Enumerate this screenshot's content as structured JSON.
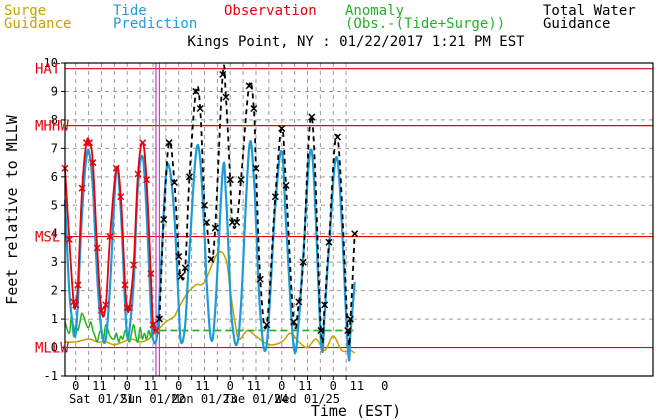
{
  "header": {
    "legend": [
      {
        "line1": "Surge",
        "line2": "Guidance",
        "color": "#c8a000"
      },
      {
        "line1": "Tide",
        "line2": "Prediction",
        "color": "#1e9bd7"
      },
      {
        "line1": "Observation",
        "line2": "",
        "color": "#e8000b"
      },
      {
        "line1": "Anomaly",
        "line2": "(Obs.-(Tide+Surge))",
        "color": "#22b422"
      },
      {
        "line1": "Total Water",
        "line2": "Guidance",
        "color": "#000000"
      }
    ],
    "title": "Kings Point, NY : 01/22/2017 1:21 PM EST"
  },
  "chart_data": {
    "type": "line",
    "xlabel": "Time (EST)",
    "ylabel": "Feet relative to MLLW",
    "xlim": [
      -5,
      269
    ],
    "ylim": [
      -1,
      10
    ],
    "yticks": [
      -1,
      0,
      1,
      2,
      3,
      4,
      5,
      6,
      7,
      8,
      9,
      10
    ],
    "xticks": [
      {
        "h": 0,
        "label": "0"
      },
      {
        "h": 11,
        "label": "11"
      },
      {
        "h": 24,
        "label": "0"
      },
      {
        "h": 35,
        "label": "11"
      },
      {
        "h": 48,
        "label": "0"
      },
      {
        "h": 59,
        "label": "11"
      },
      {
        "h": 72,
        "label": "0"
      },
      {
        "h": 83,
        "label": "11"
      },
      {
        "h": 96,
        "label": "0"
      },
      {
        "h": 107,
        "label": "11"
      },
      {
        "h": 120,
        "label": "0"
      },
      {
        "h": 131,
        "label": "11"
      },
      {
        "h": 144,
        "label": "0"
      }
    ],
    "day_labels": [
      {
        "h": 12,
        "label": "Sat 01/21"
      },
      {
        "h": 36,
        "label": "Sun 01/22"
      },
      {
        "h": 60,
        "label": "Mon 01/23"
      },
      {
        "h": 84,
        "label": "Tue 01/24"
      },
      {
        "h": 108,
        "label": "Wed 01/25"
      }
    ],
    "ref_lines": [
      {
        "name": "HAT",
        "y": 9.8
      },
      {
        "name": "MHHW",
        "y": 7.8
      },
      {
        "name": "MSL",
        "y": 3.9
      },
      {
        "name": "MLLW",
        "y": 0
      }
    ],
    "now_line_h": 37.4,
    "forecast_start_h": 39,
    "series": [
      {
        "name": "Tide Prediction",
        "color": "#1e9bd7",
        "x": [
          -5,
          -3,
          -1,
          0,
          1,
          3,
          5,
          6.4,
          8,
          10,
          12,
          14,
          16,
          18.9,
          21,
          23,
          24,
          25,
          27,
          29,
          31.2,
          33,
          35,
          36,
          38,
          40,
          42,
          43.7,
          46,
          48,
          49,
          51,
          53,
          56,
          58,
          60,
          61,
          63,
          65,
          68.5,
          70,
          72,
          73,
          75,
          77,
          80.8,
          83,
          84,
          86,
          89,
          93,
          96,
          98,
          101.6,
          104,
          106,
          110,
          114.3,
          116,
          118,
          122,
          126.8,
          128,
          130
        ],
        "values": [
          5.2,
          2.0,
          0.6,
          0.5,
          1.6,
          4.8,
          6.7,
          6.8,
          5.6,
          2.5,
          0.6,
          0.3,
          2.2,
          6.2,
          4.8,
          1.5,
          0.4,
          0.6,
          2.3,
          5.7,
          6.7,
          4.8,
          1.4,
          0.3,
          0.5,
          3.2,
          6.0,
          6.3,
          4.6,
          1.5,
          0.2,
          0.8,
          3.4,
          6.8,
          6.6,
          4.0,
          2.3,
          0.3,
          1.3,
          6.2,
          5.4,
          2.0,
          0.8,
          0.1,
          1.5,
          7.0,
          6.0,
          4.4,
          1.2,
          0.1,
          5.0,
          6.9,
          4.4,
          0.0,
          1.0,
          3.2,
          6.9,
          0.2,
          1.2,
          3.5,
          6.6,
          0.0,
          0.5,
          2.3
        ]
      },
      {
        "name": "Observation",
        "color": "#e8000b",
        "x": [
          -5,
          -3,
          -1,
          0,
          1,
          3,
          5,
          6.4,
          8,
          10,
          12,
          14,
          16,
          18.9,
          21,
          23,
          24,
          25,
          27,
          29,
          31.2,
          33,
          35,
          36,
          37.4
        ],
        "values": [
          6.3,
          3.8,
          1.6,
          1.5,
          2.2,
          5.6,
          7.2,
          7.2,
          6.5,
          3.5,
          1.3,
          1.5,
          3.9,
          6.3,
          5.3,
          2.2,
          1.4,
          1.4,
          2.9,
          6.1,
          7.2,
          5.9,
          2.6,
          0.8,
          0.6
        ]
      },
      {
        "name": "Surge Guidance",
        "color": "#c8a000",
        "x": [
          -5,
          0,
          6,
          10,
          14,
          18,
          22,
          26,
          30,
          34,
          38,
          42,
          46,
          48,
          52,
          56,
          60,
          66,
          70,
          72,
          74,
          76,
          80,
          84,
          90,
          96,
          100,
          104,
          108,
          112,
          116,
          120,
          124,
          128,
          130
        ],
        "values": [
          0.2,
          0.2,
          0.3,
          0.2,
          0.2,
          0.1,
          0.2,
          0.3,
          0.2,
          0.3,
          0.6,
          0.9,
          1.1,
          1.4,
          1.9,
          2.2,
          2.3,
          3.3,
          3.1,
          2.0,
          1.0,
          0.3,
          0.6,
          0.4,
          0.1,
          0.2,
          0.5,
          0.2,
          0.0,
          0.3,
          -0.1,
          0.4,
          -0.1,
          -0.1,
          -0.2
        ]
      },
      {
        "name": "Anomaly",
        "color": "#22b422",
        "x": [
          -5,
          -3,
          -2,
          -1,
          0,
          1,
          2,
          3,
          5,
          6,
          7,
          8,
          9,
          10,
          11,
          12,
          13,
          14,
          16,
          18,
          19,
          20,
          21,
          22,
          23,
          24,
          25,
          26,
          27,
          28,
          29,
          30,
          31,
          32,
          33,
          34,
          35,
          36,
          37.4
        ],
        "values": [
          0.9,
          0.5,
          1.1,
          0.4,
          0.8,
          0.6,
          0.9,
          1.2,
          0.8,
          0.7,
          0.9,
          0.6,
          0.4,
          0.2,
          0.5,
          0.6,
          0.3,
          0.8,
          0.4,
          0.3,
          0.5,
          0.2,
          0.4,
          0.3,
          0.6,
          0.4,
          0.2,
          0.5,
          0.8,
          0.4,
          0.2,
          0.7,
          0.3,
          0.5,
          0.3,
          0.6,
          0.4,
          0.9,
          0.6
        ]
      },
      {
        "name": "Anomaly Forecast",
        "color": "#22b422",
        "dashed": true,
        "x": [
          39,
          130
        ],
        "values": [
          0.6,
          0.6
        ]
      },
      {
        "name": "Total Water Guidance",
        "color": "#000000",
        "dashed": true,
        "markers": true,
        "x": [
          39,
          41,
          43.5,
          46,
          48,
          49,
          51,
          53,
          56,
          58,
          60,
          61,
          63,
          65,
          68.5,
          70,
          72,
          73,
          75,
          77,
          80.8,
          83,
          84,
          86,
          89,
          93,
          96,
          98,
          101.6,
          104,
          106,
          110,
          114.3,
          116,
          118,
          122,
          126.8,
          128,
          130
        ],
        "values": [
          1.0,
          4.5,
          7.2,
          5.8,
          3.2,
          2.5,
          2.8,
          6.0,
          9.0,
          8.4,
          5.0,
          4.4,
          3.1,
          4.2,
          9.6,
          8.8,
          5.9,
          4.4,
          4.4,
          5.9,
          9.2,
          8.4,
          6.3,
          2.4,
          0.8,
          5.3,
          7.7,
          5.7,
          0.9,
          1.6,
          3.0,
          8.1,
          0.6,
          1.5,
          3.7,
          7.4,
          0.6,
          1.0,
          4.0
        ]
      }
    ]
  }
}
